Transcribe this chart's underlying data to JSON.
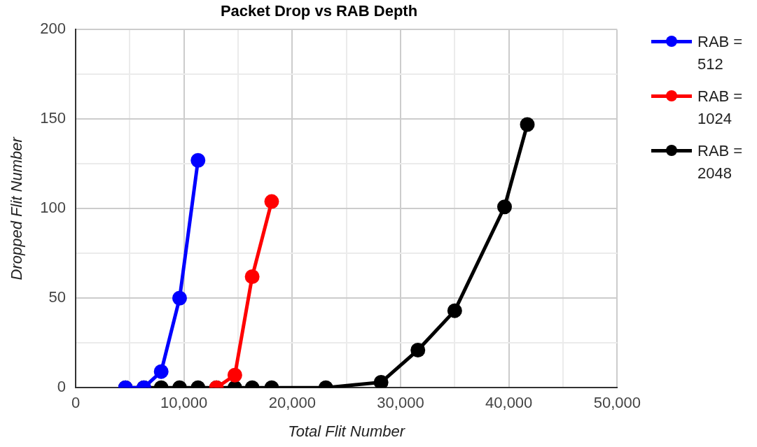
{
  "chart_data": {
    "type": "line",
    "title": "Packet Drop vs RAB Depth",
    "xlabel": "Total Flit Number",
    "ylabel": "Dropped Flit Number",
    "series": [
      {
        "name": "RAB = 512",
        "color": "#0000ff",
        "x": [
          4600,
          6300,
          7900,
          9600,
          11300
        ],
        "values": [
          0,
          0,
          9,
          50,
          127
        ]
      },
      {
        "name": "RAB = 1024",
        "color": "#ff0000",
        "x": [
          13000,
          14700,
          16300,
          18100
        ],
        "values": [
          0,
          7,
          62,
          104
        ]
      },
      {
        "name": "RAB = 2048",
        "color": "#000000",
        "x": [
          4600,
          6300,
          7900,
          9600,
          11300,
          13000,
          14700,
          16300,
          18100,
          23100,
          28200,
          31600,
          35000,
          39600,
          41700
        ],
        "values": [
          0,
          0,
          0,
          0,
          0,
          0,
          0,
          0,
          0,
          0,
          3,
          21,
          43,
          101,
          147
        ]
      }
    ],
    "xlim": [
      0,
      50000
    ],
    "xticks": [
      {
        "value": 0,
        "label": "0"
      },
      {
        "value": 5000,
        "label": null
      },
      {
        "value": 10000,
        "label": "10,000"
      },
      {
        "value": 15000,
        "label": null
      },
      {
        "value": 20000,
        "label": "20,000"
      },
      {
        "value": 25000,
        "label": null
      },
      {
        "value": 30000,
        "label": "30,000"
      },
      {
        "value": 35000,
        "label": null
      },
      {
        "value": 40000,
        "label": "40,000"
      },
      {
        "value": 45000,
        "label": null
      },
      {
        "value": 50000,
        "label": "50,000"
      }
    ],
    "ylim": [
      0,
      200
    ],
    "yticks": [
      0,
      {
        "value": 25,
        "label": null
      },
      50,
      {
        "value": 75,
        "label": null
      },
      100,
      {
        "value": 125,
        "label": null
      },
      150,
      {
        "value": 175,
        "label": null
      },
      200
    ],
    "grid": true,
    "legend": "right",
    "marker": "circle",
    "line_style": "solid"
  }
}
